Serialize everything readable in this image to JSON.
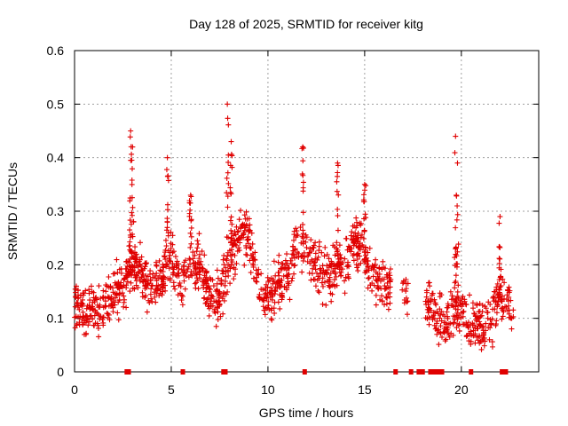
{
  "chart_data": {
    "type": "scatter",
    "title": "Day 128 of 2025, SRMTID for receiver kitg",
    "xlabel": "GPS time / hours",
    "ylabel": "SRMTID / TECUs",
    "xlim": [
      0,
      24
    ],
    "ylim": [
      0,
      0.6
    ],
    "xticks": [
      0,
      5,
      10,
      15,
      20
    ],
    "xtick_labels": [
      "0",
      "5",
      "10",
      "15",
      "20"
    ],
    "yticks": [
      0,
      0.1,
      0.2,
      0.3,
      0.4,
      0.5,
      0.6
    ],
    "ytick_labels": [
      "0",
      "0.1",
      "0.2",
      "0.3",
      "0.4",
      "0.5",
      "0.6"
    ],
    "grid": true,
    "marker": "plus",
    "color": "#e00000",
    "series": [
      {
        "name": "SRMTID",
        "profile": [
          [
            0.0,
            0.13
          ],
          [
            0.5,
            0.11
          ],
          [
            1.0,
            0.11
          ],
          [
            1.5,
            0.12
          ],
          [
            2.0,
            0.14
          ],
          [
            2.5,
            0.16
          ],
          [
            3.0,
            0.2
          ],
          [
            3.5,
            0.18
          ],
          [
            4.0,
            0.16
          ],
          [
            4.5,
            0.17
          ],
          [
            5.0,
            0.22
          ],
          [
            5.5,
            0.17
          ],
          [
            6.0,
            0.2
          ],
          [
            6.5,
            0.2
          ],
          [
            7.0,
            0.13
          ],
          [
            7.5,
            0.14
          ],
          [
            8.0,
            0.2
          ],
          [
            8.5,
            0.25
          ],
          [
            9.0,
            0.26
          ],
          [
            9.5,
            0.15
          ],
          [
            10.0,
            0.14
          ],
          [
            10.5,
            0.16
          ],
          [
            11.0,
            0.17
          ],
          [
            11.5,
            0.24
          ],
          [
            12.0,
            0.22
          ],
          [
            12.5,
            0.2
          ],
          [
            13.0,
            0.18
          ],
          [
            13.5,
            0.19
          ],
          [
            14.0,
            0.21
          ],
          [
            14.5,
            0.25
          ],
          [
            15.0,
            0.22
          ],
          [
            15.5,
            0.18
          ],
          [
            16.0,
            0.16
          ],
          [
            16.3,
            0.14
          ],
          [
            16.9,
            0.14
          ],
          [
            17.2,
            0.15
          ],
          [
            18.2,
            0.12
          ],
          [
            18.5,
            0.13
          ],
          [
            19.0,
            0.09
          ],
          [
            19.5,
            0.11
          ],
          [
            20.0,
            0.12
          ],
          [
            20.5,
            0.08
          ],
          [
            21.0,
            0.09
          ],
          [
            21.5,
            0.1
          ],
          [
            22.0,
            0.14
          ],
          [
            22.5,
            0.13
          ],
          [
            22.7,
            0.11
          ]
        ],
        "spread": 0.045,
        "count": 1500,
        "peaks": [
          [
            2.9,
            0.45
          ],
          [
            3.0,
            0.42
          ],
          [
            4.8,
            0.4
          ],
          [
            6.0,
            0.33
          ],
          [
            7.9,
            0.5
          ],
          [
            8.1,
            0.43
          ],
          [
            11.8,
            0.42
          ],
          [
            13.6,
            0.39
          ],
          [
            15.0,
            0.35
          ],
          [
            19.7,
            0.44
          ],
          [
            19.8,
            0.39
          ],
          [
            22.0,
            0.29
          ]
        ]
      }
    ],
    "data_gaps_hours": [
      2.7,
      2.8,
      5.6,
      7.7,
      7.8,
      11.9,
      16.6,
      17.4,
      17.8,
      17.9,
      18.0,
      18.4,
      18.6,
      18.8,
      19.0,
      20.5,
      22.1,
      22.2,
      22.3
    ]
  }
}
